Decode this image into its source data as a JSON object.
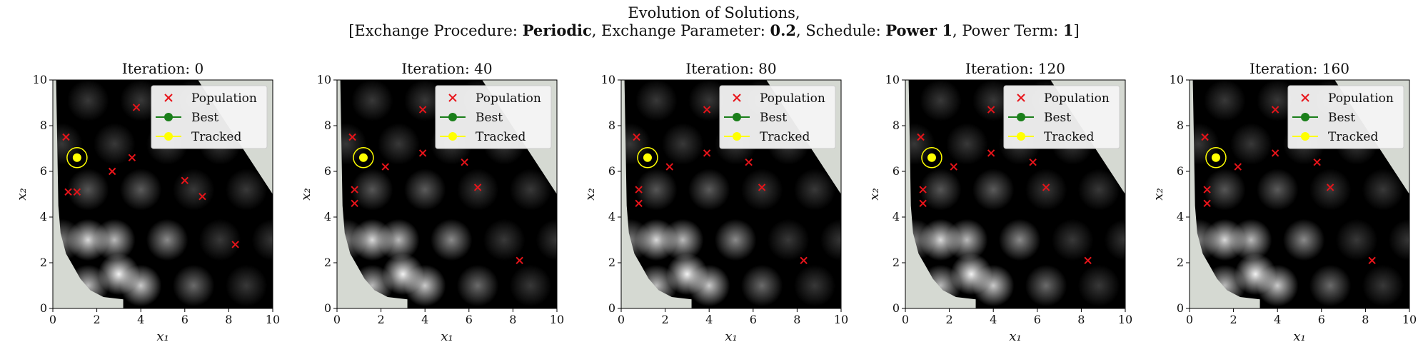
{
  "figure": {
    "title_line1": "Evolution of Solutions,",
    "title_line2": {
      "open": "[Exchange Procedure: ",
      "procedure": "Periodic",
      "sep1": ", Exchange Parameter: ",
      "parameter": "0.2",
      "sep2": ", Schedule: ",
      "schedule": "Power 1",
      "sep3": ", Power Term: ",
      "power_term": "1",
      "close": "]"
    }
  },
  "colors": {
    "population": "#e8141a",
    "best": "#1a7f1a",
    "tracked": "#ffff00",
    "infeasible": "#d5d9d2",
    "background": "#000000"
  },
  "legend": {
    "placement": "top-right",
    "entries": [
      {
        "label": "Population",
        "marker": "x",
        "color": "#e8141a"
      },
      {
        "label": "Best",
        "marker": "line-dot",
        "color": "#1a7f1a"
      },
      {
        "label": "Tracked",
        "marker": "line-dot",
        "color": "#ffff00"
      }
    ]
  },
  "chart_data": [
    {
      "type": "scatter",
      "title_prefix": "Iteration: ",
      "iteration": "0",
      "xlabel": "x₁",
      "ylabel": "x₂",
      "xlim": [
        0,
        10
      ],
      "ylim": [
        0,
        10
      ],
      "xticks": [
        "0",
        "2",
        "4",
        "6",
        "8",
        "10"
      ],
      "yticks": [
        "0",
        "2",
        "4",
        "6",
        "8",
        "10"
      ],
      "population": [
        [
          0.6,
          7.5
        ],
        [
          3.8,
          8.8
        ],
        [
          3.6,
          6.6
        ],
        [
          2.7,
          6.0
        ],
        [
          0.7,
          5.1
        ],
        [
          1.1,
          5.1
        ],
        [
          6.0,
          5.6
        ],
        [
          6.8,
          4.9
        ],
        [
          8.3,
          2.8
        ]
      ],
      "tracked": [
        1.1,
        6.6
      ]
    },
    {
      "type": "scatter",
      "title_prefix": "Iteration: ",
      "iteration": "40",
      "xlabel": "x₁",
      "ylabel": "x₂",
      "xlim": [
        0,
        10
      ],
      "ylim": [
        0,
        10
      ],
      "xticks": [
        "0",
        "2",
        "4",
        "6",
        "8",
        "10"
      ],
      "yticks": [
        "0",
        "2",
        "4",
        "6",
        "8",
        "10"
      ],
      "population": [
        [
          0.7,
          7.5
        ],
        [
          3.9,
          8.7
        ],
        [
          3.9,
          6.8
        ],
        [
          2.2,
          6.2
        ],
        [
          0.8,
          5.2
        ],
        [
          0.8,
          4.6
        ],
        [
          5.8,
          6.4
        ],
        [
          6.4,
          5.3
        ],
        [
          8.3,
          2.1
        ]
      ],
      "tracked": [
        1.2,
        6.6
      ]
    },
    {
      "type": "scatter",
      "title_prefix": "Iteration: ",
      "iteration": "80",
      "xlabel": "x₁",
      "ylabel": "x₂",
      "xlim": [
        0,
        10
      ],
      "ylim": [
        0,
        10
      ],
      "xticks": [
        "0",
        "2",
        "4",
        "6",
        "8",
        "10"
      ],
      "yticks": [
        "0",
        "2",
        "4",
        "6",
        "8",
        "10"
      ],
      "population": [
        [
          0.7,
          7.5
        ],
        [
          3.9,
          8.7
        ],
        [
          3.9,
          6.8
        ],
        [
          2.2,
          6.2
        ],
        [
          0.8,
          5.2
        ],
        [
          0.8,
          4.6
        ],
        [
          5.8,
          6.4
        ],
        [
          6.4,
          5.3
        ],
        [
          8.3,
          2.1
        ]
      ],
      "tracked": [
        1.2,
        6.6
      ]
    },
    {
      "type": "scatter",
      "title_prefix": "Iteration: ",
      "iteration": "120",
      "xlabel": "x₁",
      "ylabel": "x₂",
      "xlim": [
        0,
        10
      ],
      "ylim": [
        0,
        10
      ],
      "xticks": [
        "0",
        "2",
        "4",
        "6",
        "8",
        "10"
      ],
      "yticks": [
        "0",
        "2",
        "4",
        "6",
        "8",
        "10"
      ],
      "population": [
        [
          0.7,
          7.5
        ],
        [
          3.9,
          8.7
        ],
        [
          3.9,
          6.8
        ],
        [
          2.2,
          6.2
        ],
        [
          0.8,
          5.2
        ],
        [
          0.8,
          4.6
        ],
        [
          5.8,
          6.4
        ],
        [
          6.4,
          5.3
        ],
        [
          8.3,
          2.1
        ]
      ],
      "tracked": [
        1.2,
        6.6
      ]
    },
    {
      "type": "scatter",
      "title_prefix": "Iteration: ",
      "iteration": "160",
      "xlabel": "x₁",
      "ylabel": "x₂",
      "xlim": [
        0,
        10
      ],
      "ylim": [
        0,
        10
      ],
      "xticks": [
        "0",
        "2",
        "4",
        "6",
        "8",
        "10"
      ],
      "yticks": [
        "0",
        "2",
        "4",
        "6",
        "8",
        "10"
      ],
      "population": [
        [
          0.7,
          7.5
        ],
        [
          3.9,
          8.7
        ],
        [
          3.9,
          6.8
        ],
        [
          2.2,
          6.2
        ],
        [
          0.8,
          5.2
        ],
        [
          0.8,
          4.6
        ],
        [
          5.8,
          6.4
        ],
        [
          6.4,
          5.3
        ],
        [
          8.3,
          2.1
        ]
      ],
      "tracked": [
        1.2,
        6.6
      ]
    }
  ]
}
